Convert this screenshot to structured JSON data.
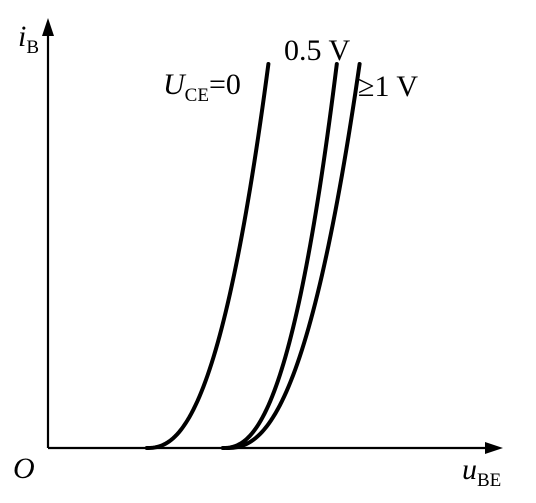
{
  "chart_data": {
    "type": "line",
    "title": "",
    "origin_label": "O",
    "y_axis": {
      "symbol": "i",
      "subscript": "B"
    },
    "x_axis": {
      "symbol": "u",
      "subscript": "BE"
    },
    "grid": false,
    "curve_labels": {
      "first": {
        "symbol": "U",
        "subscript": "CE",
        "suffix": "=0"
      },
      "second": "0.5 V",
      "third": "≥1 V"
    },
    "series": [
      {
        "threshold": 0.26,
        "end": 0.58
      },
      {
        "threshold": 0.46,
        "end": 0.76
      },
      {
        "threshold": 0.47,
        "end": 0.82
      }
    ],
    "line_color": "#000000"
  }
}
